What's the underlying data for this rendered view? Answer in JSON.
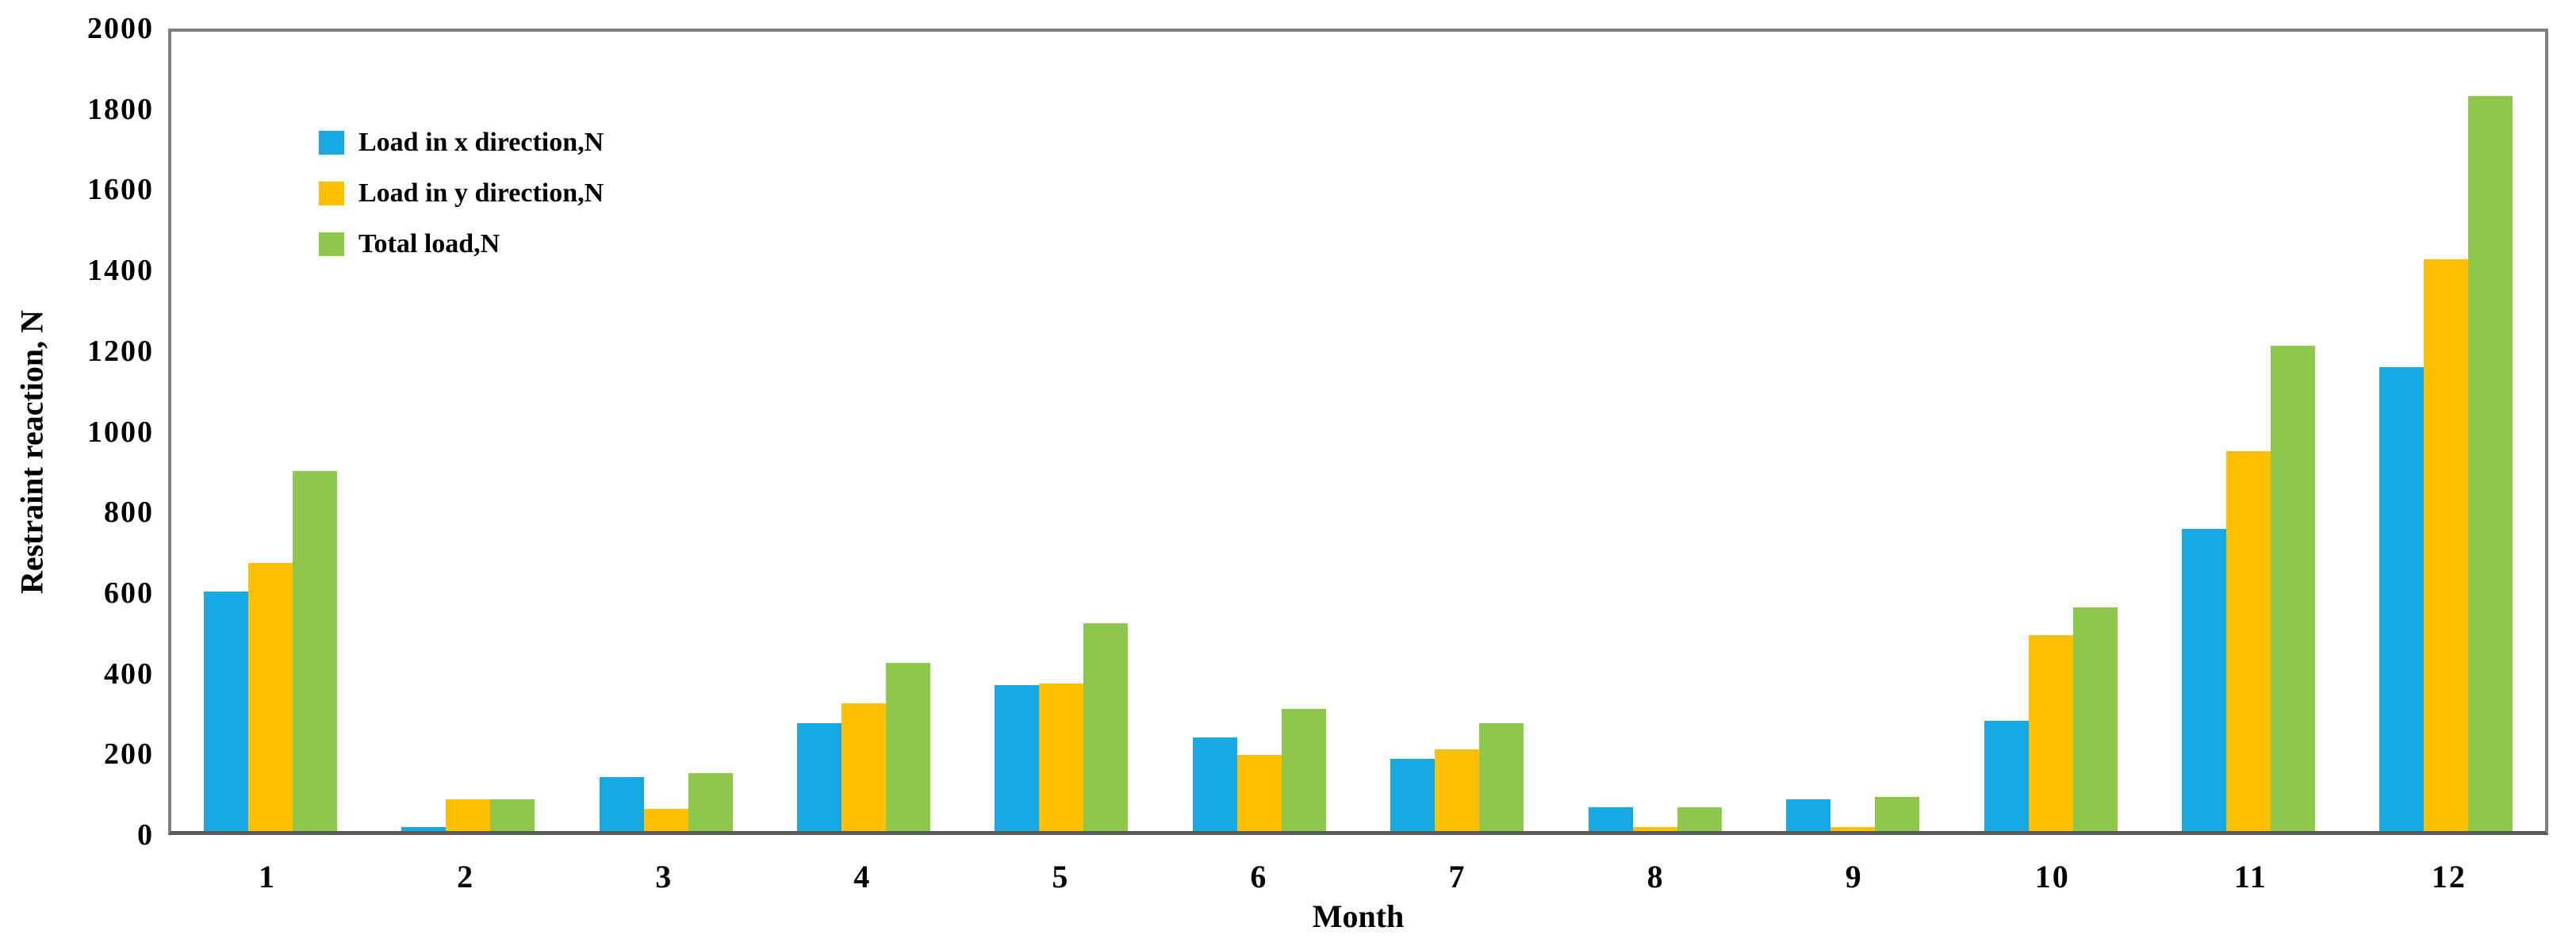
{
  "figure_title": "",
  "axes": {
    "y_title": "Restraint reaction, N",
    "x_title": "Month"
  },
  "colors": {
    "series_x": "#16A9E4",
    "series_y": "#FFC000",
    "series_total": "#8DC74B",
    "plot_border": "#7f7f7f",
    "axis_line": "#595959",
    "text": "#000000",
    "background": "#ffffff"
  },
  "chart_data": {
    "type": "bar",
    "title": "",
    "xlabel": "Month",
    "ylabel": "Restraint reaction, N",
    "ylim": [
      0,
      2000
    ],
    "y_tick_step": 200,
    "y_ticks": [
      0,
      200,
      400,
      600,
      800,
      1000,
      1200,
      1400,
      1600,
      1800,
      2000
    ],
    "grid": false,
    "legend_position": "upper-left-inside",
    "categories": [
      "1",
      "2",
      "3",
      "4",
      "5",
      "6",
      "7",
      "8",
      "9",
      "10",
      "11",
      "12"
    ],
    "series": [
      {
        "name": "Load in x direction,N",
        "key": "x",
        "color": "#16A9E4",
        "values": [
          600,
          10,
          135,
          270,
          365,
          235,
          180,
          60,
          80,
          275,
          755,
          1160
        ]
      },
      {
        "name": "Load in y direction,N",
        "key": "y",
        "color": "#FFC000",
        "values": [
          670,
          80,
          55,
          320,
          370,
          190,
          205,
          10,
          10,
          490,
          950,
          1430
        ]
      },
      {
        "name": "Total load,N",
        "key": "total",
        "color": "#8DC74B",
        "values": [
          900,
          80,
          145,
          420,
          520,
          305,
          270,
          60,
          85,
          560,
          1215,
          1840
        ]
      }
    ]
  }
}
